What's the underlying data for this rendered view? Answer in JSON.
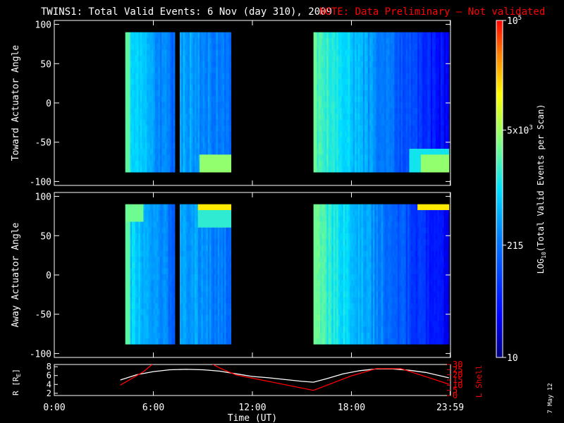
{
  "title": {
    "main": "TWINS1: Total Valid Events:  6 Nov (day 310), 2009",
    "note": "NOTE: Data Preliminary – Not validated"
  },
  "colors": {
    "background": "#000000",
    "axis": "#ffffff",
    "note": "#ff0000",
    "r_line": "#ffffff",
    "lshell_line": "#ff0000"
  },
  "date_stamp": "7 May 12",
  "chart_data": [
    {
      "type": "heatmap",
      "panel": "top",
      "ylabel": "Toward Actuator Angle",
      "ylim": [
        -105,
        105
      ],
      "yticks": [
        100,
        50,
        0,
        -50,
        -100
      ],
      "angle_range": [
        -88,
        90
      ],
      "xlim": [
        0,
        24
      ],
      "data_intervals_hours": [
        [
          4.3,
          7.3
        ],
        [
          7.6,
          10.7
        ],
        [
          15.7,
          23.9
        ]
      ],
      "notes": "counts mostly 215-1000 (blue/cyan); brighter yellow-green band near -70 to -88 deg after 9 UT and near 23 UT"
    },
    {
      "type": "heatmap",
      "panel": "middle",
      "ylabel": "Away Actuator Angle",
      "ylim": [
        -105,
        105
      ],
      "yticks": [
        100,
        50,
        0,
        -50,
        -100
      ],
      "angle_range": [
        -88,
        90
      ],
      "xlim": [
        0,
        24
      ],
      "data_intervals_hours": [
        [
          4.3,
          7.3
        ],
        [
          7.6,
          10.7
        ],
        [
          15.7,
          23.9
        ]
      ],
      "notes": "yellow-orange band near +85 to +90 deg at 8-10.5 UT and 22-23 UT"
    },
    {
      "type": "line",
      "panel": "bottom",
      "xlabel": "Time (UT)",
      "xticks": [
        "0:00",
        "6:00",
        "12:00",
        "18:00",
        "23:59"
      ],
      "xtick_hours": [
        0,
        6,
        12,
        18,
        23.98
      ],
      "ylabel_left": "R [R",
      "ylabel_left_sub": "E",
      "ylabel_left_end": "]",
      "ylim_left": [
        1.5,
        8.5
      ],
      "yticks_left": [
        8,
        6,
        4,
        2
      ],
      "ylabel_right": "L Shell",
      "ylim_right": [
        0,
        30
      ],
      "yticks_right": [
        30,
        25,
        20,
        15,
        10,
        5,
        0
      ],
      "series": [
        {
          "axis": "left",
          "color": "#ffffff",
          "x": [
            4.0,
            5.0,
            6.0,
            7.0,
            8.0,
            9.0,
            10.0,
            11.0,
            12.0,
            13.0,
            14.0,
            15.0,
            15.7,
            16.5,
            17.5,
            18.5,
            19.5,
            20.5,
            21.5,
            22.5,
            23.9
          ],
          "y": [
            5.0,
            6.2,
            6.9,
            7.3,
            7.4,
            7.3,
            7.0,
            6.4,
            5.8,
            5.5,
            5.1,
            4.7,
            4.5,
            5.3,
            6.4,
            7.1,
            7.5,
            7.5,
            7.2,
            6.7,
            5.5
          ]
        },
        {
          "axis": "right",
          "color": "#ff0000",
          "x": [
            4.0,
            5.4,
            6.0,
            9.5,
            10.1,
            11.0,
            15.7,
            18.0,
            19.5,
            21.0,
            23.9
          ],
          "y": [
            10.0,
            23.0,
            31.0,
            31.0,
            26.0,
            20.0,
            5.0,
            19.0,
            26.0,
            26.0,
            11.0
          ]
        }
      ]
    }
  ],
  "colorbar": {
    "title": "LOG",
    "title_sub": "10",
    "title_rest": "(Total Valid Events per Scan)",
    "labels": [
      {
        "value": 10,
        "text": "10"
      },
      {
        "value": 215,
        "text": "215"
      },
      {
        "value": 5000,
        "text": "5x10",
        "sup": "3"
      },
      {
        "value": 100000,
        "text": "10",
        "sup": "5"
      }
    ],
    "range": [
      10,
      100000
    ]
  }
}
